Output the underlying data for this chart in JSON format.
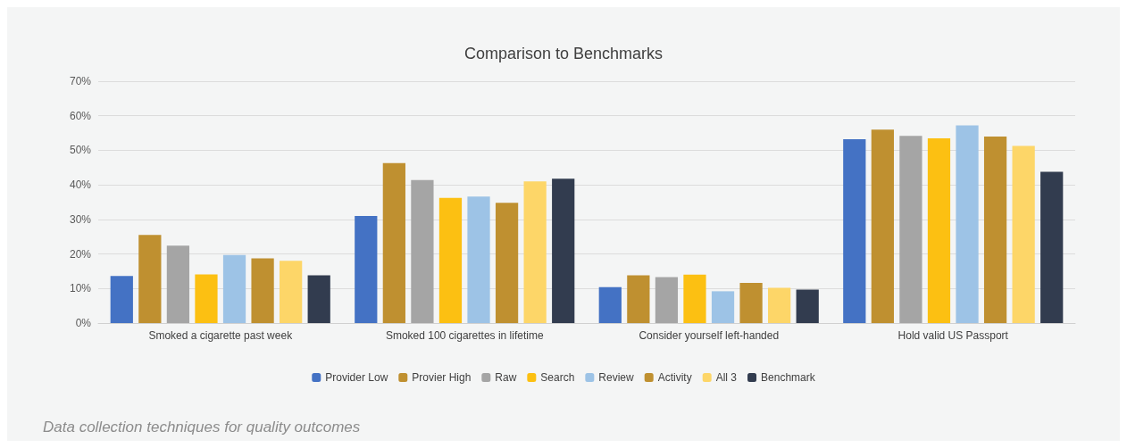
{
  "chart_data": {
    "type": "bar",
    "title": "Comparison to Benchmarks",
    "categories": [
      "Smoked a cigarette past week",
      "Smoked 100 cigarettes in lifetime",
      "Consider yourself left-handed",
      "Hold valid US Passport"
    ],
    "series": [
      {
        "name": "Provider Low",
        "color": "#4472c4",
        "values": [
          13.6,
          31,
          10.4,
          53.2
        ]
      },
      {
        "name": "Provier High",
        "color": "#bf9030",
        "values": [
          25.5,
          46.3,
          13.8,
          56
        ]
      },
      {
        "name": "Raw",
        "color": "#a5a5a5",
        "values": [
          22.4,
          41.4,
          13.3,
          54.2
        ]
      },
      {
        "name": "Search",
        "color": "#fcc012",
        "values": [
          14.1,
          36.2,
          14,
          53.5
        ]
      },
      {
        "name": "Review",
        "color": "#9dc3e6",
        "values": [
          19.7,
          36.6,
          9.2,
          57.2
        ]
      },
      {
        "name": "Activity",
        "color": "#bf9030",
        "values": [
          18.7,
          34.8,
          11.6,
          54
        ]
      },
      {
        "name": "All 3",
        "color": "#fdd668",
        "values": [
          18,
          41,
          10.2,
          51.3
        ]
      },
      {
        "name": "Benchmark",
        "color": "#323c4f",
        "values": [
          13.8,
          41.8,
          9.7,
          43.8
        ]
      }
    ],
    "ylim": [
      0,
      70
    ],
    "yticks": [
      {
        "value": 0,
        "label": "0%"
      },
      {
        "value": 10,
        "label": "10%"
      },
      {
        "value": 20,
        "label": "20%"
      },
      {
        "value": 30,
        "label": "30%"
      },
      {
        "value": 40,
        "label": "40%"
      },
      {
        "value": 50,
        "label": "50%"
      },
      {
        "value": 60,
        "label": "60%"
      },
      {
        "value": 70,
        "label": "70%"
      }
    ],
    "grid": "y",
    "legend": "bottom",
    "annotations": [
      "Data collection techniques for quality outcomes"
    ]
  }
}
